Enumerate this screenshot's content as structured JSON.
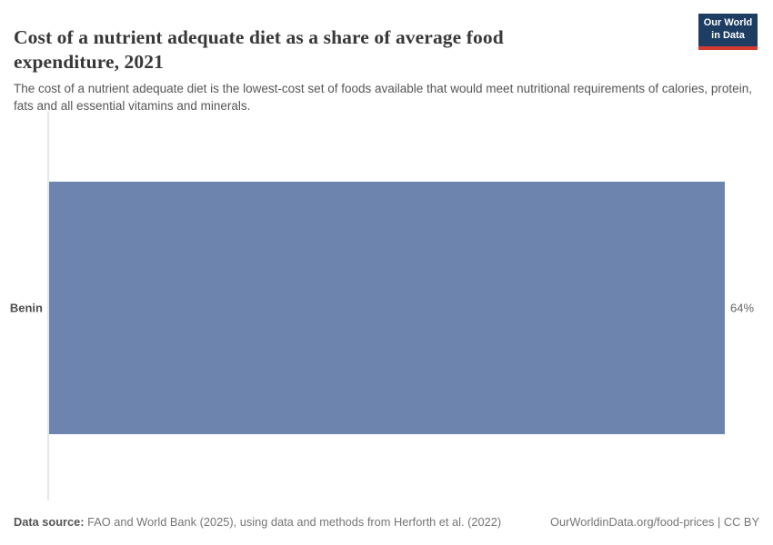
{
  "header": {
    "title": "Cost of a nutrient adequate diet as a share of average food expenditure, 2021",
    "subtitle": "The cost of a nutrient adequate diet is the lowest-cost set of foods available that would meet nutritional requirements of calories, protein, fats and all essential vitamins and minerals.",
    "logo": {
      "line1": "Our World",
      "line2": "in Data"
    }
  },
  "chart_data": {
    "type": "bar",
    "orientation": "horizontal",
    "title": "Cost of a nutrient adequate diet as a share of average food expenditure, 2021",
    "year": "2021",
    "categories": [
      "Benin"
    ],
    "values": [
      64
    ],
    "value_labels": [
      "64%"
    ],
    "unit": "%",
    "xlim": [
      0,
      64
    ],
    "grid": false,
    "legend": "none",
    "bar_color": "#6d84ae"
  },
  "colors": {
    "bar": "#6d84ae",
    "logo_background": "#1d3d63",
    "logo_stripe": "#d43b2f",
    "axis_line": "#e7e7e7"
  },
  "footer": {
    "datasource_label": "Data source:",
    "datasource_text": " FAO and World Bank (2025), using data and methods from Herforth et al. (2022)",
    "url_license": "OurWorldinData.org/food-prices | CC BY"
  }
}
